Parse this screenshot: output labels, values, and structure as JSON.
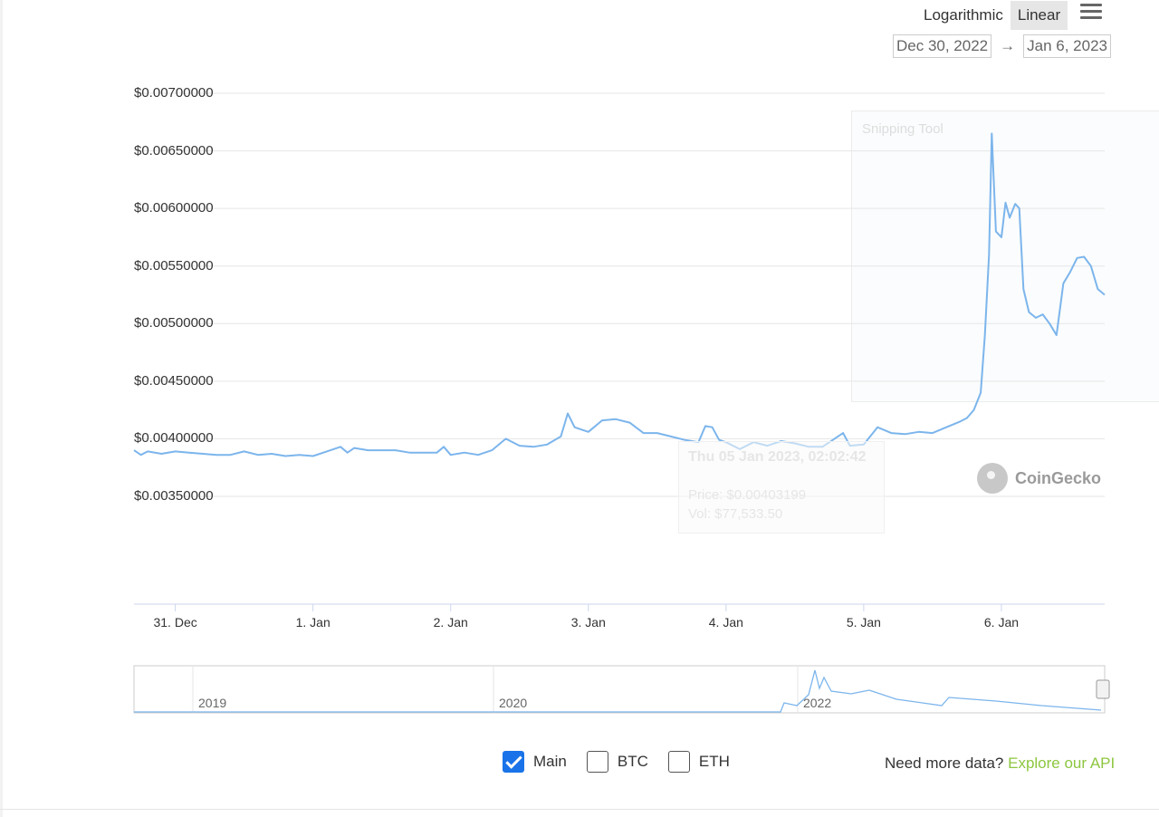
{
  "controls": {
    "scale_options": [
      "Logarithmic",
      "Linear"
    ],
    "active_scale": "Linear",
    "date_from": "Dec 30, 2022",
    "date_arrow": "→",
    "date_to": "Jan 6, 2023"
  },
  "watermark": "CoinGecko",
  "ghost_overlay": {
    "window_title": "Snipping Tool",
    "tooltip_date": "Thu 05 Jan 2023, 02:02:42",
    "tooltip_price": "Price: $0.00403199",
    "tooltip_vol": "Vol: $77,533.50"
  },
  "legend": [
    {
      "label": "Main",
      "checked": true
    },
    {
      "label": "BTC",
      "checked": false
    },
    {
      "label": "ETH",
      "checked": false
    }
  ],
  "api_prompt": "Need more data?",
  "api_link": "Explore our API",
  "colors": {
    "line": "#7cb5ec",
    "grid": "#e6e6e6",
    "accent": "#8dc63f",
    "check": "#1a73e8"
  },
  "chart_data": {
    "type": "line",
    "title": "",
    "xlabel": "",
    "ylabel": "",
    "y_tick_labels": [
      "$0.00700000",
      "$0.00650000",
      "$0.00600000",
      "$0.00550000",
      "$0.00500000",
      "$0.00450000",
      "$0.00400000",
      "$0.00350000"
    ],
    "y_tick_values": [
      0.007,
      0.0065,
      0.006,
      0.0055,
      0.005,
      0.0045,
      0.004,
      0.0035
    ],
    "ylim": [
      0.0035,
      0.007
    ],
    "x_tick_labels": [
      "31. Dec",
      "1. Jan",
      "2. Jan",
      "3. Jan",
      "4. Jan",
      "5. Jan",
      "6. Jan"
    ],
    "x_tick_days": [
      1,
      2,
      3,
      4,
      5,
      6,
      7
    ],
    "xlim_days": [
      0.7,
      7.75
    ],
    "series": [
      {
        "x_days": [
          0.7,
          0.75,
          0.8,
          0.9,
          1.0,
          1.1,
          1.2,
          1.3,
          1.4,
          1.5,
          1.6,
          1.7,
          1.8,
          1.9,
          2.0,
          2.1,
          2.2,
          2.25,
          2.3,
          2.4,
          2.5,
          2.6,
          2.7,
          2.8,
          2.9,
          2.95,
          3.0,
          3.1,
          3.2,
          3.3,
          3.4,
          3.5,
          3.6,
          3.7,
          3.8,
          3.85,
          3.9,
          3.95,
          4.0,
          4.1,
          4.2,
          4.3,
          4.4,
          4.5,
          4.6,
          4.7,
          4.8,
          4.85,
          4.9,
          4.95,
          5.0,
          5.1,
          5.2,
          5.3,
          5.4,
          5.5,
          5.6,
          5.7,
          5.8,
          5.85,
          5.9,
          6.0,
          6.1,
          6.2,
          6.3,
          6.4,
          6.5,
          6.6,
          6.7,
          6.75,
          6.8,
          6.85,
          6.88,
          6.91,
          6.93,
          6.96,
          7.0,
          7.03,
          7.06,
          7.1,
          7.13,
          7.16,
          7.2,
          7.25,
          7.3,
          7.35,
          7.4,
          7.45,
          7.5,
          7.55,
          7.6,
          7.65,
          7.7,
          7.75
        ],
        "values": [
          0.0039,
          0.00386,
          0.00389,
          0.00387,
          0.00389,
          0.00388,
          0.00387,
          0.00386,
          0.00386,
          0.00389,
          0.00386,
          0.00387,
          0.00385,
          0.00386,
          0.00385,
          0.00389,
          0.00393,
          0.00388,
          0.00392,
          0.0039,
          0.0039,
          0.0039,
          0.00388,
          0.00388,
          0.00388,
          0.00393,
          0.00386,
          0.00388,
          0.00386,
          0.0039,
          0.004,
          0.00394,
          0.00393,
          0.00395,
          0.00402,
          0.00422,
          0.0041,
          0.00408,
          0.00406,
          0.00416,
          0.00417,
          0.00414,
          0.00405,
          0.00405,
          0.00402,
          0.00399,
          0.00397,
          0.00411,
          0.0041,
          0.00399,
          0.00397,
          0.00391,
          0.00397,
          0.00394,
          0.00398,
          0.00396,
          0.00393,
          0.00393,
          0.00401,
          0.00405,
          0.00394,
          0.00395,
          0.0041,
          0.00405,
          0.00404,
          0.00406,
          0.00405,
          0.0041,
          0.00415,
          0.00418,
          0.00425,
          0.0044,
          0.0049,
          0.0056,
          0.00665,
          0.0058,
          0.00575,
          0.00605,
          0.00592,
          0.00604,
          0.006,
          0.0053,
          0.0051,
          0.00505,
          0.00508,
          0.005,
          0.0049,
          0.00535,
          0.00545,
          0.00557,
          0.00558,
          0.0055,
          0.0053,
          0.00525
        ],
        "name": ""
      }
    ],
    "grid": true,
    "volume_visible": false,
    "navigator_labels": [
      "2019",
      "2020",
      "2022"
    ]
  }
}
